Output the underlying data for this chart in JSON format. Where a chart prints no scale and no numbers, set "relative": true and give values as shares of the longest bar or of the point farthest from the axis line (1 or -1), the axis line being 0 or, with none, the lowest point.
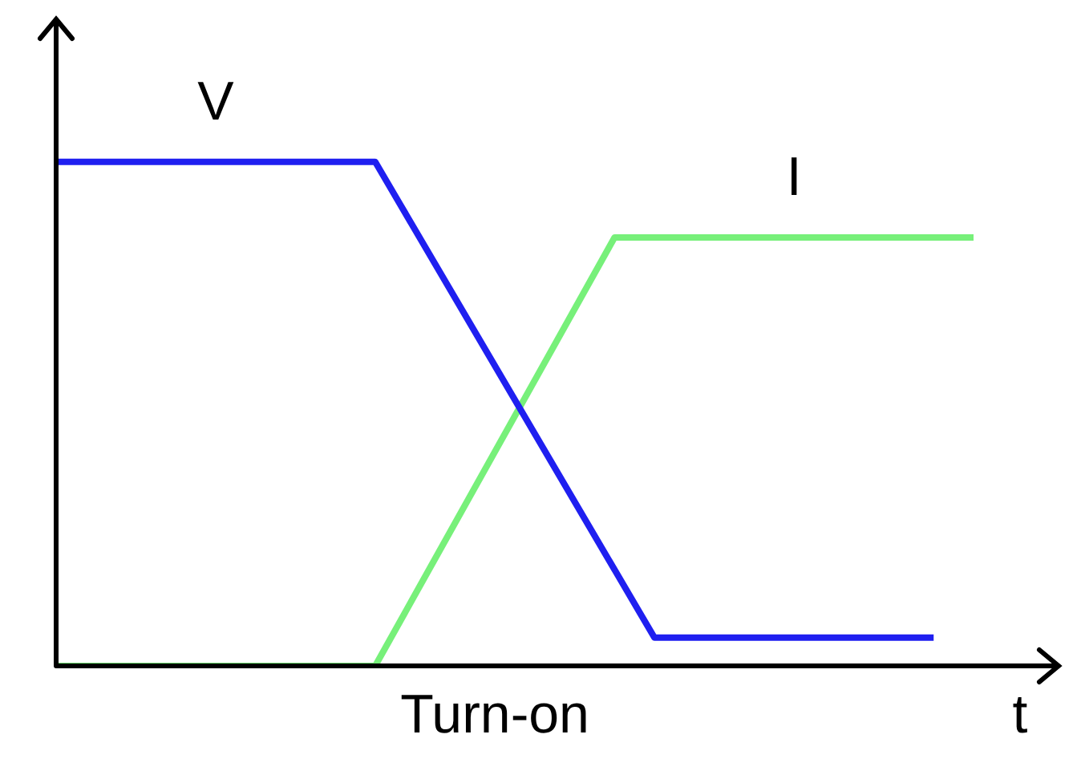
{
  "chart_data": {
    "type": "line",
    "relative": true,
    "xlabel": "t",
    "annotations": [
      "Turn-on"
    ],
    "tick_labels": false,
    "legend": false,
    "marker": "none",
    "line_style": "solid",
    "categories": [
      null,
      null,
      null,
      null,
      null,
      null,
      null,
      null,
      null,
      null,
      null,
      null,
      null,
      null,
      null,
      null,
      null,
      null,
      null,
      null,
      null,
      null,
      null,
      null
    ],
    "series": [
      {
        "name": "V",
        "color": "#1f1ff0",
        "values": [
          1,
          null,
          null,
          null,
          null,
          null,
          null,
          null,
          1,
          null,
          null,
          null,
          null,
          null,
          null,
          0.056,
          null,
          null,
          null,
          null,
          null,
          null,
          0.056,
          null
        ]
      },
      {
        "name": "I",
        "color": "#77f07a",
        "values": [
          0,
          null,
          null,
          null,
          null,
          null,
          null,
          null,
          0,
          null,
          null,
          null,
          null,
          null,
          0.85,
          null,
          null,
          null,
          null,
          null,
          null,
          null,
          null,
          0.85
        ]
      }
    ]
  }
}
